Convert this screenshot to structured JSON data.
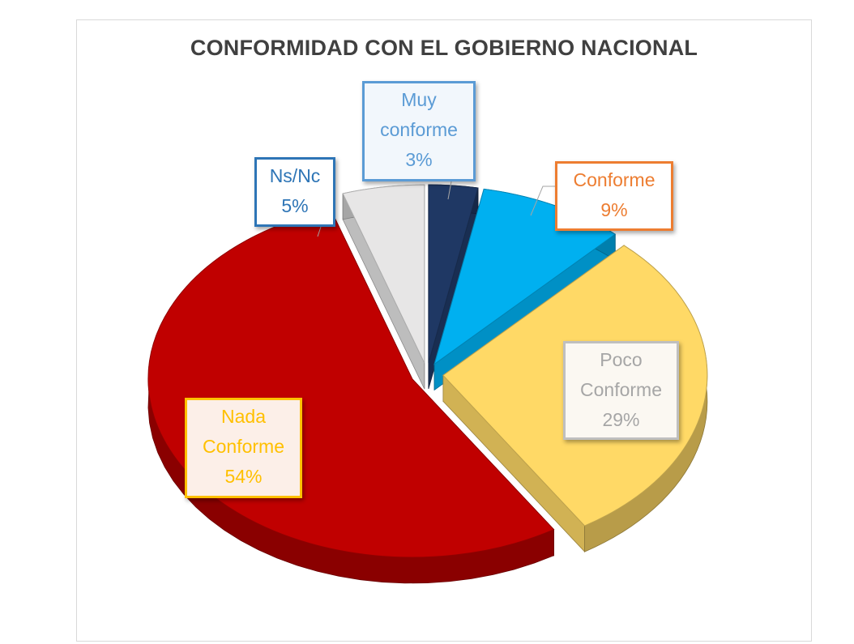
{
  "chart_data": {
    "type": "pie",
    "title": "CONFORMIDAD CON EL GOBIERNO NACIONAL",
    "slices": [
      {
        "label_lines": [
          "Muy",
          "conforme"
        ],
        "pct_label": "3%",
        "value": 3,
        "color": "#1f3864",
        "border": "#5b9bd5",
        "text": "#5b9bd5",
        "bg": "#f2f7fc"
      },
      {
        "label_lines": [
          "Conforme"
        ],
        "pct_label": "9%",
        "value": 9,
        "color": "#00b0f0",
        "border": "#ed7d31",
        "text": "#ed7d31",
        "bg": "#ffffff"
      },
      {
        "label_lines": [
          "Poco",
          "Conforme"
        ],
        "pct_label": "29%",
        "value": 29,
        "color": "#ffd966",
        "border": "#bfbfbf",
        "text": "#a6a6a6",
        "bg": "#fbf8f2"
      },
      {
        "label_lines": [
          "Nada",
          "Conforme"
        ],
        "pct_label": "54%",
        "value": 54,
        "color": "#c00000",
        "border": "#ffc000",
        "text": "#ffc000",
        "bg": "#fcefe8"
      },
      {
        "label_lines": [
          "Ns/Nc"
        ],
        "pct_label": "5%",
        "value": 5,
        "color": "#e7e6e6",
        "border": "#2e75b6",
        "text": "#2e75b6",
        "bg": "#ffffff"
      }
    ],
    "legend": "none",
    "style": "3d-exploded"
  }
}
